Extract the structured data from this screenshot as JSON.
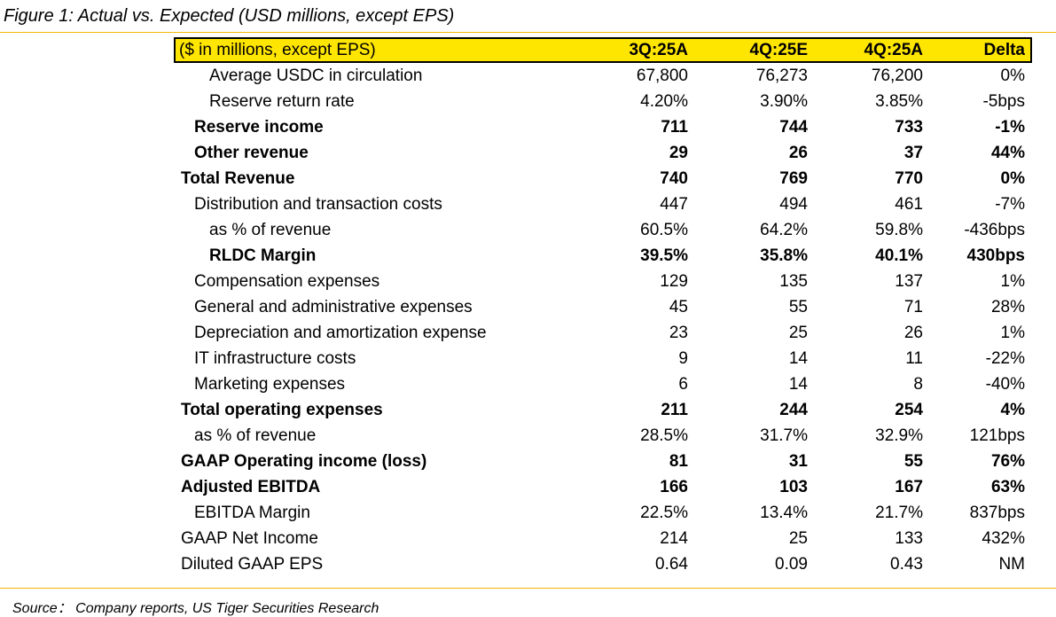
{
  "figure_title": "Figure 1: Actual vs. Expected (USD millions, except EPS)",
  "header": {
    "label": "($ in millions, except EPS)",
    "col1": "3Q:25A",
    "col2": "4Q:25E",
    "col3": "4Q:25A",
    "col4": "Delta"
  },
  "rows": [
    {
      "label": "Average USDC in circulation",
      "v1": "67,800",
      "v2": "76,273",
      "v3": "76,200",
      "v4": "0%"
    },
    {
      "label": "Reserve return rate",
      "v1": "4.20%",
      "v2": "3.90%",
      "v3": "3.85%",
      "v4": "-5bps"
    },
    {
      "label": "Reserve income",
      "v1": "711",
      "v2": "744",
      "v3": "733",
      "v4": "-1%"
    },
    {
      "label": "Other revenue",
      "v1": "29",
      "v2": "26",
      "v3": "37",
      "v4": "44%"
    },
    {
      "label": "Total Revenue",
      "v1": "740",
      "v2": "769",
      "v3": "770",
      "v4": "0%"
    },
    {
      "label": "Distribution and transaction costs",
      "v1": "447",
      "v2": "494",
      "v3": "461",
      "v4": "-7%"
    },
    {
      "label": "as % of revenue",
      "v1": "60.5%",
      "v2": "64.2%",
      "v3": "59.8%",
      "v4": "-436bps"
    },
    {
      "label": "RLDC Margin",
      "v1": "39.5%",
      "v2": "35.8%",
      "v3": "40.1%",
      "v4": "430bps"
    },
    {
      "label": "Compensation expenses",
      "v1": "129",
      "v2": "135",
      "v3": "137",
      "v4": "1%"
    },
    {
      "label": "General and administrative expenses",
      "v1": "45",
      "v2": "55",
      "v3": "71",
      "v4": "28%"
    },
    {
      "label": "Depreciation and amortization expense",
      "v1": "23",
      "v2": "25",
      "v3": "26",
      "v4": "1%"
    },
    {
      "label": "IT infrastructure costs",
      "v1": "9",
      "v2": "14",
      "v3": "11",
      "v4": "-22%"
    },
    {
      "label": "Marketing expenses",
      "v1": "6",
      "v2": "14",
      "v3": "8",
      "v4": "-40%"
    },
    {
      "label": "Total operating expenses",
      "v1": "211",
      "v2": "244",
      "v3": "254",
      "v4": "4%"
    },
    {
      "label": "as % of revenue",
      "v1": "28.5%",
      "v2": "31.7%",
      "v3": "32.9%",
      "v4": "121bps"
    },
    {
      "label": "GAAP Operating income (loss)",
      "v1": "81",
      "v2": "31",
      "v3": "55",
      "v4": "76%"
    },
    {
      "label": "Adjusted EBITDA",
      "v1": "166",
      "v2": "103",
      "v3": "167",
      "v4": "63%"
    },
    {
      "label": "EBITDA Margin",
      "v1": "22.5%",
      "v2": "13.4%",
      "v3": "21.7%",
      "v4": "837bps"
    },
    {
      "label": "GAAP Net Income",
      "v1": "214",
      "v2": "25",
      "v3": "133",
      "v4": "432%"
    },
    {
      "label": "Diluted GAAP EPS",
      "v1": "0.64",
      "v2": "0.09",
      "v3": "0.43",
      "v4": "NM"
    }
  ],
  "source": "Source： Company reports, US Tiger Securities Research"
}
